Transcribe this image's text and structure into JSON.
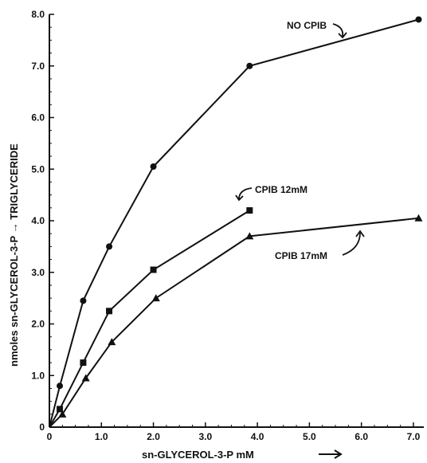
{
  "chart_data": {
    "type": "line",
    "title": "",
    "xlabel": "sn-GLYCEROL-3-P  mM",
    "ylabel": "nmoles sn-GLYCEROL-3-P → TRIGLYCERIDE",
    "xlim": [
      0,
      7.2
    ],
    "ylim": [
      0,
      8.0
    ],
    "x_ticks": [
      0,
      1.0,
      2.0,
      3.0,
      4.0,
      5.0,
      6.0,
      7.0
    ],
    "x_tick_labels": [
      "0",
      "1.0",
      "2.0",
      "3.0",
      "4.0",
      "5.0",
      "6.0",
      "7.0"
    ],
    "y_ticks": [
      0,
      1.0,
      2.0,
      3.0,
      4.0,
      5.0,
      6.0,
      7.0,
      8.0
    ],
    "y_tick_labels": [
      "0",
      "1.0",
      "2.0",
      "3.0",
      "4.0",
      "5.0",
      "6.0",
      "7.0",
      "8.0"
    ],
    "grid": false,
    "series": [
      {
        "name": "NO CPIB",
        "marker": "circle",
        "x": [
          0.2,
          0.65,
          1.15,
          2.0,
          3.85,
          7.1
        ],
        "y": [
          0.8,
          2.45,
          3.5,
          5.05,
          7.0,
          7.9
        ]
      },
      {
        "name": "CPIB 12mM",
        "marker": "square",
        "x": [
          0.2,
          0.65,
          1.15,
          2.0,
          3.85
        ],
        "y": [
          0.35,
          1.25,
          2.25,
          3.05,
          4.2
        ]
      },
      {
        "name": "CPIB 17mM",
        "marker": "triangle",
        "x": [
          0.25,
          0.7,
          1.2,
          2.05,
          3.85,
          7.1
        ],
        "y": [
          0.25,
          0.95,
          1.65,
          2.5,
          3.7,
          4.05
        ]
      }
    ],
    "annotations": [
      "NO CPIB",
      "CPIB 12mM",
      "CPIB 17mM"
    ]
  }
}
